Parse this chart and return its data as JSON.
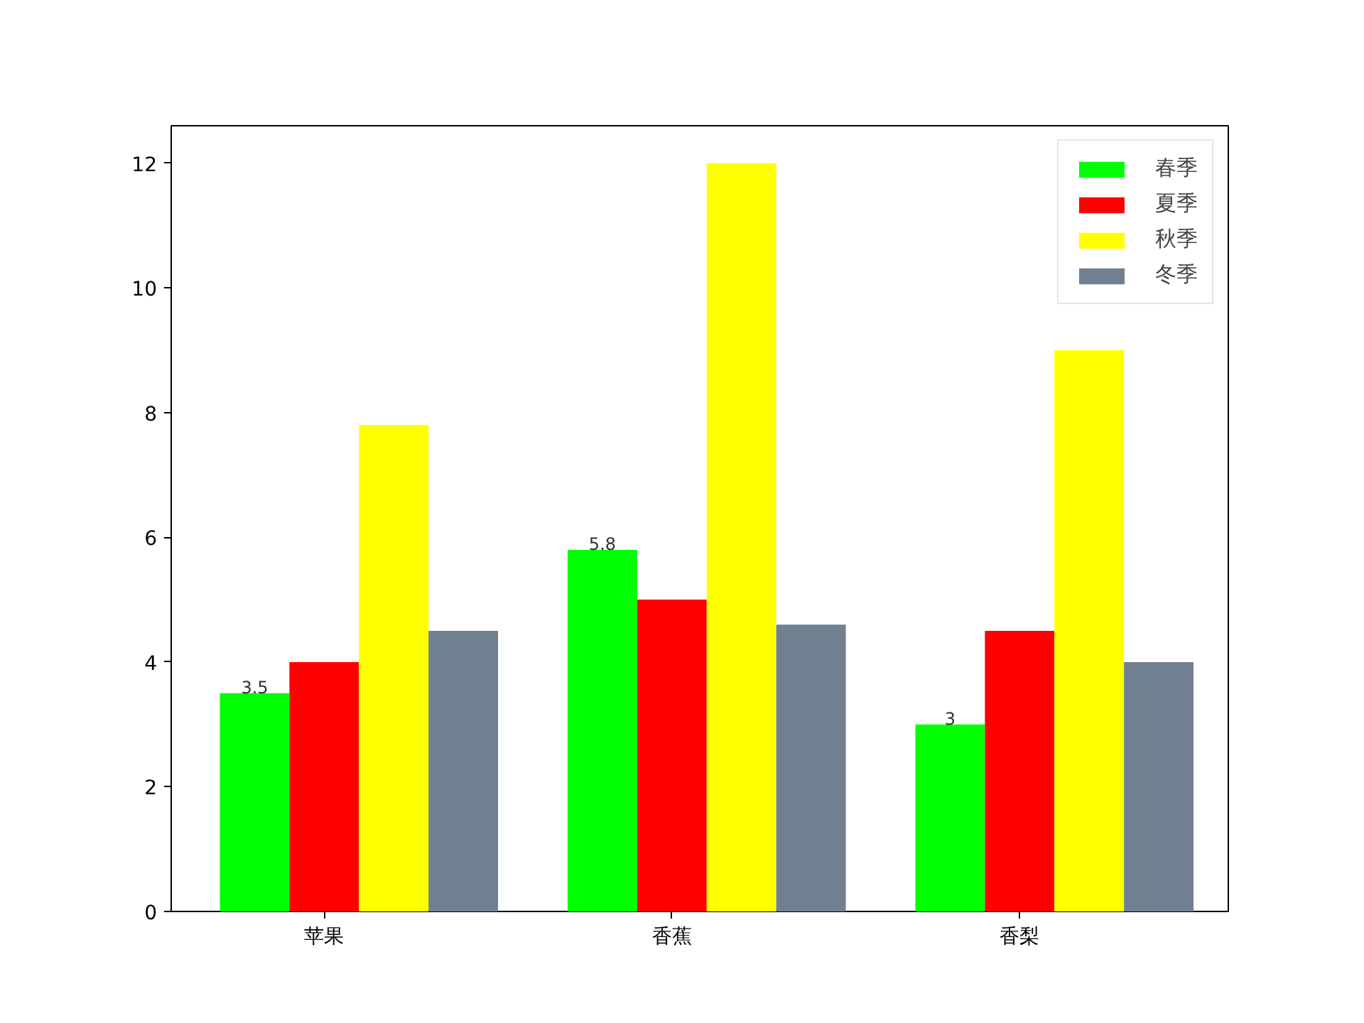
{
  "chart_data": {
    "type": "bar",
    "categories": [
      "苹果",
      "香蕉",
      "香梨"
    ],
    "series": [
      {
        "name": "春季",
        "color": "#00ff00",
        "values": [
          3.5,
          5.8,
          3
        ],
        "value_labels": [
          "3.5",
          "5.8",
          "3"
        ]
      },
      {
        "name": "夏季",
        "color": "#ff0000",
        "values": [
          4.0,
          5.0,
          4.5
        ]
      },
      {
        "name": "秋季",
        "color": "#ffff00",
        "values": [
          7.8,
          12,
          9.0
        ]
      },
      {
        "name": "冬季",
        "color": "#708090",
        "values": [
          4.5,
          4.6,
          4.0
        ]
      }
    ],
    "ylim": [
      0,
      12.6
    ],
    "yticks": [
      0,
      2,
      4,
      6,
      8,
      10,
      12
    ],
    "grid": false,
    "legend": "top right"
  }
}
